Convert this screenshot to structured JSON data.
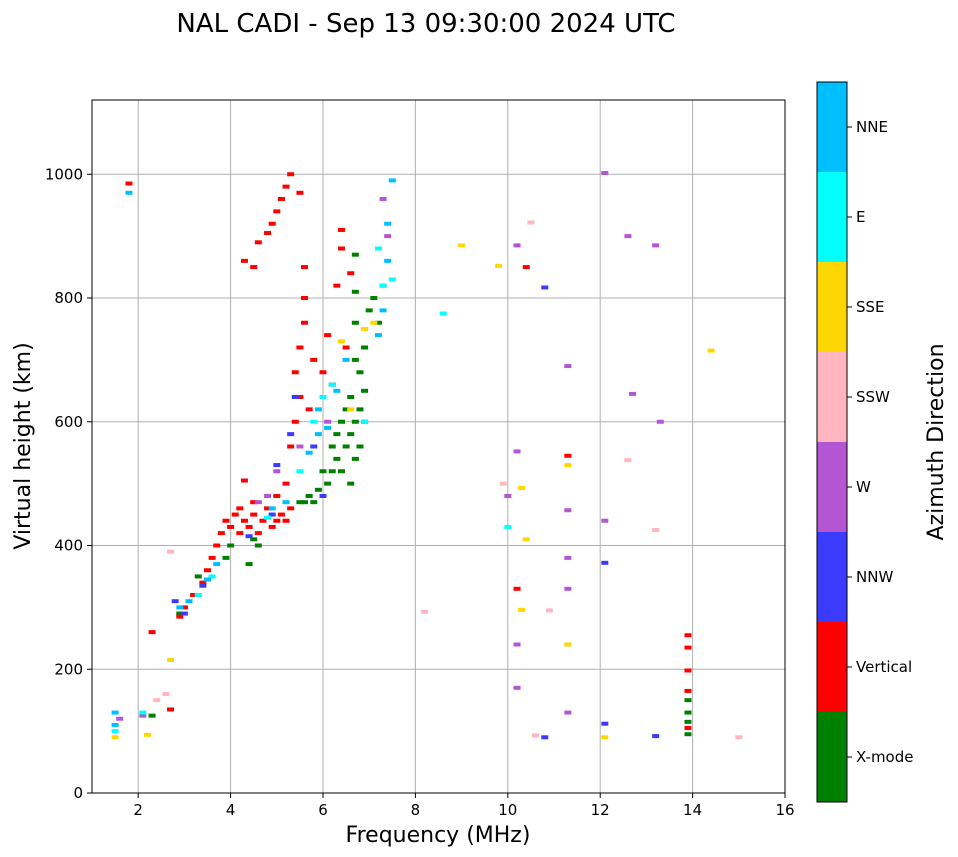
{
  "chart_data": {
    "type": "scatter",
    "title": "NAL CADI - Sep 13 09:30:00 2024 UTC",
    "xlabel": "Frequency (MHz)",
    "ylabel": "Virtual height (km)",
    "xlim": [
      1,
      16
    ],
    "ylim": [
      0,
      1120
    ],
    "xticks": [
      "2",
      "4",
      "6",
      "8",
      "10",
      "12",
      "14",
      "16"
    ],
    "yticks": [
      "0",
      "200",
      "400",
      "600",
      "800",
      "1000"
    ],
    "grid": true,
    "colorbar": {
      "label": "Azimuth Direction",
      "categories": [
        {
          "name": "X-mode",
          "color": "#008000"
        },
        {
          "name": "Vertical",
          "color": "#ff0000"
        },
        {
          "name": "NNW",
          "color": "#3b3bff"
        },
        {
          "name": "W",
          "color": "#b455d4"
        },
        {
          "name": "SSW",
          "color": "#ffb6c1"
        },
        {
          "name": "SSE",
          "color": "#ffd700"
        },
        {
          "name": "E",
          "color": "#00ffff"
        },
        {
          "name": "NNE",
          "color": "#00bfff"
        }
      ]
    },
    "series": [
      {
        "name": "X-mode",
        "points": [
          [
            2.3,
            125
          ],
          [
            2.9,
            290
          ],
          [
            3.3,
            350
          ],
          [
            3.9,
            380
          ],
          [
            4.0,
            400
          ],
          [
            4.4,
            370
          ],
          [
            4.5,
            410
          ],
          [
            4.6,
            400
          ],
          [
            5.5,
            470
          ],
          [
            5.6,
            470
          ],
          [
            5.7,
            480
          ],
          [
            5.8,
            470
          ],
          [
            5.9,
            490
          ],
          [
            6.0,
            480
          ],
          [
            6.0,
            520
          ],
          [
            6.1,
            500
          ],
          [
            6.2,
            520
          ],
          [
            6.2,
            560
          ],
          [
            6.3,
            540
          ],
          [
            6.3,
            580
          ],
          [
            6.4,
            520
          ],
          [
            6.4,
            600
          ],
          [
            6.5,
            560
          ],
          [
            6.5,
            620
          ],
          [
            6.6,
            500
          ],
          [
            6.6,
            580
          ],
          [
            6.6,
            640
          ],
          [
            6.7,
            540
          ],
          [
            6.7,
            600
          ],
          [
            6.7,
            700
          ],
          [
            6.8,
            560
          ],
          [
            6.8,
            620
          ],
          [
            6.8,
            680
          ],
          [
            6.9,
            600
          ],
          [
            6.9,
            650
          ],
          [
            6.9,
            720
          ],
          [
            6.7,
            760
          ],
          [
            6.7,
            810
          ],
          [
            6.7,
            870
          ],
          [
            7.0,
            780
          ],
          [
            7.1,
            800
          ],
          [
            7.2,
            760
          ],
          [
            7.3,
            820
          ],
          [
            13.9,
            95
          ],
          [
            13.9,
            115
          ],
          [
            13.9,
            130
          ],
          [
            13.9,
            150
          ]
        ]
      },
      {
        "name": "Vertical",
        "points": [
          [
            1.8,
            985
          ],
          [
            2.3,
            260
          ],
          [
            2.7,
            135
          ],
          [
            2.9,
            285
          ],
          [
            3.0,
            300
          ],
          [
            3.2,
            320
          ],
          [
            3.4,
            340
          ],
          [
            3.5,
            360
          ],
          [
            3.6,
            380
          ],
          [
            3.7,
            400
          ],
          [
            3.8,
            420
          ],
          [
            3.9,
            440
          ],
          [
            4.0,
            430
          ],
          [
            4.1,
            450
          ],
          [
            4.2,
            420
          ],
          [
            4.2,
            460
          ],
          [
            4.3,
            440
          ],
          [
            4.3,
            505
          ],
          [
            4.4,
            430
          ],
          [
            4.5,
            450
          ],
          [
            4.5,
            470
          ],
          [
            4.6,
            420
          ],
          [
            4.7,
            440
          ],
          [
            4.8,
            460
          ],
          [
            4.9,
            430
          ],
          [
            5.0,
            440
          ],
          [
            5.0,
            480
          ],
          [
            5.1,
            450
          ],
          [
            5.2,
            440
          ],
          [
            5.2,
            500
          ],
          [
            5.3,
            460
          ],
          [
            5.3,
            560
          ],
          [
            5.4,
            600
          ],
          [
            5.4,
            680
          ],
          [
            5.5,
            640
          ],
          [
            5.5,
            720
          ],
          [
            5.6,
            760
          ],
          [
            5.6,
            800
          ],
          [
            5.7,
            620
          ],
          [
            5.8,
            700
          ],
          [
            6.0,
            680
          ],
          [
            6.1,
            740
          ],
          [
            6.2,
            660
          ],
          [
            6.3,
            820
          ],
          [
            6.4,
            880
          ],
          [
            6.5,
            720
          ],
          [
            4.3,
            860
          ],
          [
            4.5,
            850
          ],
          [
            4.6,
            890
          ],
          [
            4.8,
            905
          ],
          [
            4.9,
            920
          ],
          [
            5.0,
            940
          ],
          [
            5.1,
            960
          ],
          [
            5.2,
            980
          ],
          [
            5.3,
            1000
          ],
          [
            5.5,
            970
          ],
          [
            5.6,
            850
          ],
          [
            6.4,
            910
          ],
          [
            6.6,
            840
          ],
          [
            10.2,
            330
          ],
          [
            10.4,
            850
          ],
          [
            11.3,
            545
          ],
          [
            13.9,
            255
          ],
          [
            13.9,
            235
          ],
          [
            13.9,
            198
          ],
          [
            13.9,
            165
          ],
          [
            13.9,
            105
          ]
        ]
      },
      {
        "name": "NNW",
        "points": [
          [
            2.8,
            310
          ],
          [
            3.0,
            290
          ],
          [
            3.4,
            335
          ],
          [
            4.4,
            415
          ],
          [
            4.9,
            450
          ],
          [
            5.0,
            530
          ],
          [
            5.3,
            580
          ],
          [
            5.4,
            640
          ],
          [
            5.8,
            560
          ],
          [
            6.0,
            480
          ],
          [
            10.8,
            90
          ],
          [
            10.8,
            817
          ],
          [
            12.1,
            372
          ],
          [
            12.1,
            112
          ],
          [
            13.2,
            92
          ]
        ]
      },
      {
        "name": "W",
        "points": [
          [
            1.6,
            120
          ],
          [
            2.1,
            125
          ],
          [
            4.6,
            470
          ],
          [
            4.8,
            480
          ],
          [
            5.0,
            520
          ],
          [
            5.5,
            560
          ],
          [
            6.1,
            600
          ],
          [
            7.3,
            960
          ],
          [
            7.4,
            900
          ],
          [
            10.0,
            480
          ],
          [
            10.2,
            552
          ],
          [
            10.2,
            885
          ],
          [
            10.2,
            240
          ],
          [
            10.2,
            170
          ],
          [
            11.3,
            690
          ],
          [
            11.3,
            457
          ],
          [
            11.3,
            380
          ],
          [
            11.3,
            330
          ],
          [
            11.3,
            130
          ],
          [
            12.1,
            1002
          ],
          [
            12.1,
            440
          ],
          [
            12.6,
            900
          ],
          [
            12.7,
            645
          ],
          [
            13.2,
            885
          ],
          [
            13.3,
            600
          ]
        ]
      },
      {
        "name": "SSW",
        "points": [
          [
            2.4,
            150
          ],
          [
            2.6,
            160
          ],
          [
            2.7,
            390
          ],
          [
            8.2,
            293
          ],
          [
            9.9,
            500
          ],
          [
            10.5,
            922
          ],
          [
            10.6,
            93
          ],
          [
            10.9,
            295
          ],
          [
            12.6,
            538
          ],
          [
            13.2,
            425
          ],
          [
            15.0,
            90
          ]
        ]
      },
      {
        "name": "SSE",
        "points": [
          [
            1.5,
            90
          ],
          [
            2.2,
            94
          ],
          [
            2.7,
            215
          ],
          [
            6.4,
            730
          ],
          [
            6.6,
            620
          ],
          [
            6.9,
            750
          ],
          [
            7.1,
            760
          ],
          [
            9.0,
            885
          ],
          [
            9.8,
            852
          ],
          [
            10.3,
            493
          ],
          [
            10.4,
            410
          ],
          [
            10.3,
            296
          ],
          [
            11.3,
            530
          ],
          [
            11.3,
            240
          ],
          [
            12.1,
            90
          ],
          [
            14.4,
            715
          ]
        ]
      },
      {
        "name": "E",
        "points": [
          [
            1.5,
            100
          ],
          [
            2.1,
            130
          ],
          [
            3.3,
            320
          ],
          [
            3.6,
            350
          ],
          [
            4.8,
            445
          ],
          [
            5.5,
            520
          ],
          [
            5.8,
            600
          ],
          [
            6.0,
            640
          ],
          [
            6.2,
            660
          ],
          [
            6.9,
            600
          ],
          [
            7.2,
            880
          ],
          [
            7.3,
            820
          ],
          [
            7.5,
            830
          ],
          [
            8.6,
            775
          ],
          [
            10.0,
            430
          ]
        ]
      },
      {
        "name": "NNE",
        "points": [
          [
            1.5,
            130
          ],
          [
            1.5,
            110
          ],
          [
            1.8,
            970
          ],
          [
            2.9,
            300
          ],
          [
            3.1,
            310
          ],
          [
            3.5,
            345
          ],
          [
            3.7,
            370
          ],
          [
            4.9,
            460
          ],
          [
            5.2,
            470
          ],
          [
            5.7,
            550
          ],
          [
            5.9,
            580
          ],
          [
            5.9,
            620
          ],
          [
            6.1,
            590
          ],
          [
            6.3,
            650
          ],
          [
            6.5,
            700
          ],
          [
            7.2,
            740
          ],
          [
            7.3,
            780
          ],
          [
            7.4,
            860
          ],
          [
            7.4,
            920
          ],
          [
            7.5,
            990
          ]
        ]
      }
    ]
  }
}
